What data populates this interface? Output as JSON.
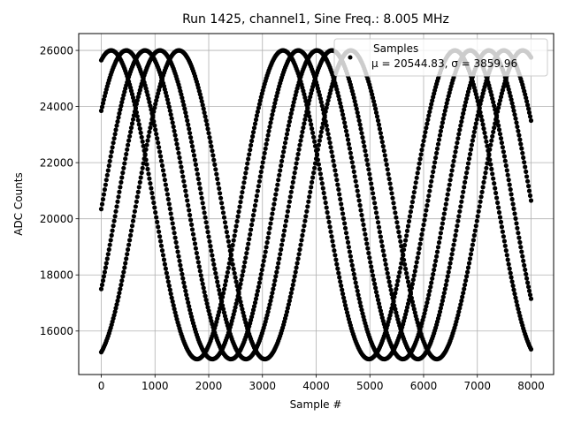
{
  "chart_data": {
    "type": "scatter",
    "title": "Run 1425, channel1, Sine Freq.: 8.005 MHz",
    "xlabel": "Sample #",
    "ylabel": "ADC Counts",
    "xlim": [
      -420,
      8420
    ],
    "ylim": [
      14450,
      26600
    ],
    "xticks": [
      0,
      1000,
      2000,
      3000,
      4000,
      5000,
      6000,
      7000,
      8000
    ],
    "yticks": [
      16000,
      18000,
      20000,
      22000,
      24000,
      26000
    ],
    "grid": true,
    "legend_position": "top-right",
    "series": [
      {
        "name": "Samples",
        "color": "#000000",
        "marker": "circle",
        "x_start": 0,
        "x_end": 8000,
        "signal": {
          "mean": 20500,
          "amplitude": 5500,
          "clip_max": 26000,
          "clip_min": 15000,
          "period_samples": 3200,
          "start_values": [
            25650,
            23850,
            20350,
            17500,
            15250
          ]
        }
      }
    ],
    "legend": {
      "title": "Samples",
      "stats": "μ = 20544.83, σ = 3859.96"
    }
  }
}
